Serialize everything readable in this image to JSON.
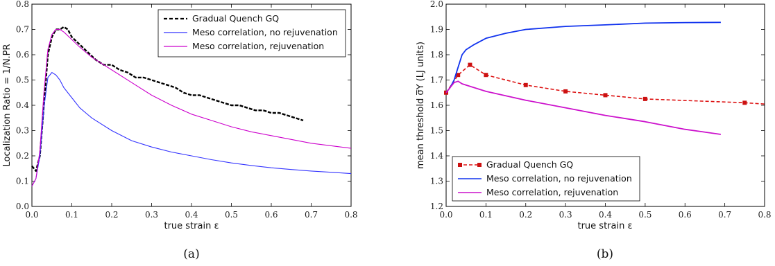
{
  "chart_data": [
    {
      "type": "line",
      "caption": "(a)",
      "xlabel": "true strain ε",
      "ylabel": "Localization Ratio = 1/N.PR",
      "xlim": [
        0,
        0.8
      ],
      "ylim": [
        0,
        0.8
      ],
      "xticks": [
        "0.0",
        "0.1",
        "0.2",
        "0.3",
        "0.4",
        "0.5",
        "0.6",
        "0.7",
        "0.8"
      ],
      "yticks": [
        "0.0",
        "0.1",
        "0.2",
        "0.3",
        "0.4",
        "0.5",
        "0.6",
        "0.7",
        "0.8"
      ],
      "legend_position": "top-right",
      "series": [
        {
          "name": "Gradual Quench GQ",
          "color": "#000000",
          "style": "dashed",
          "x": [
            0.0,
            0.01,
            0.02,
            0.03,
            0.04,
            0.05,
            0.06,
            0.07,
            0.08,
            0.09,
            0.1,
            0.12,
            0.14,
            0.16,
            0.18,
            0.2,
            0.22,
            0.24,
            0.26,
            0.28,
            0.3,
            0.32,
            0.34,
            0.36,
            0.38,
            0.4,
            0.42,
            0.44,
            0.46,
            0.48,
            0.5,
            0.52,
            0.54,
            0.56,
            0.58,
            0.6,
            0.62,
            0.64,
            0.66,
            0.68
          ],
          "y": [
            0.16,
            0.14,
            0.2,
            0.4,
            0.6,
            0.67,
            0.7,
            0.7,
            0.71,
            0.7,
            0.67,
            0.64,
            0.61,
            0.58,
            0.56,
            0.56,
            0.54,
            0.53,
            0.51,
            0.51,
            0.5,
            0.49,
            0.48,
            0.47,
            0.45,
            0.44,
            0.44,
            0.43,
            0.42,
            0.41,
            0.4,
            0.4,
            0.39,
            0.38,
            0.38,
            0.37,
            0.37,
            0.36,
            0.35,
            0.34
          ]
        },
        {
          "name": "Meso correlation, no rejuvenation",
          "color": "#3333ff",
          "style": "solid",
          "x": [
            0.0,
            0.01,
            0.02,
            0.03,
            0.04,
            0.05,
            0.06,
            0.07,
            0.08,
            0.1,
            0.12,
            0.15,
            0.2,
            0.25,
            0.3,
            0.35,
            0.4,
            0.45,
            0.5,
            0.55,
            0.6,
            0.65,
            0.7,
            0.75,
            0.8
          ],
          "y": [
            0.08,
            0.11,
            0.2,
            0.39,
            0.51,
            0.53,
            0.52,
            0.5,
            0.47,
            0.43,
            0.39,
            0.35,
            0.3,
            0.26,
            0.235,
            0.215,
            0.2,
            0.185,
            0.172,
            0.162,
            0.153,
            0.146,
            0.14,
            0.135,
            0.13
          ]
        },
        {
          "name": "Meso correlation, rejuvenation",
          "color": "#cc00cc",
          "style": "solid",
          "x": [
            0.0,
            0.01,
            0.02,
            0.03,
            0.04,
            0.05,
            0.06,
            0.07,
            0.08,
            0.1,
            0.12,
            0.15,
            0.2,
            0.25,
            0.3,
            0.35,
            0.4,
            0.45,
            0.5,
            0.55,
            0.6,
            0.65,
            0.7,
            0.75,
            0.8
          ],
          "y": [
            0.08,
            0.11,
            0.22,
            0.45,
            0.62,
            0.68,
            0.7,
            0.7,
            0.69,
            0.66,
            0.63,
            0.59,
            0.54,
            0.49,
            0.44,
            0.4,
            0.365,
            0.34,
            0.315,
            0.295,
            0.28,
            0.265,
            0.25,
            0.24,
            0.23
          ]
        }
      ]
    },
    {
      "type": "line",
      "caption": "(b)",
      "xlabel": "true strain ε",
      "ylabel": "mean threshold σ̅Y (LJ units)",
      "xlim": [
        0,
        0.8
      ],
      "ylim": [
        1.2,
        2.0
      ],
      "xticks": [
        "0.0",
        "0.1",
        "0.2",
        "0.3",
        "0.4",
        "0.5",
        "0.6",
        "0.7",
        "0.8"
      ],
      "yticks": [
        "1.2",
        "1.3",
        "1.4",
        "1.5",
        "1.6",
        "1.7",
        "1.8",
        "1.9",
        "2.0"
      ],
      "legend_position": "bottom-left",
      "series": [
        {
          "name": "Gradual Quench GQ",
          "color": "#dd1111",
          "style": "dashed",
          "markers": true,
          "x": [
            0.0,
            0.03,
            0.06,
            0.1,
            0.2,
            0.3,
            0.4,
            0.5,
            0.75,
            0.8
          ],
          "y": [
            1.65,
            1.72,
            1.76,
            1.72,
            1.68,
            1.655,
            1.64,
            1.625,
            1.61,
            1.605
          ],
          "marker_count": 9
        },
        {
          "name": "Meso correlation, no rejuvenation",
          "color": "#1133ee",
          "style": "solid",
          "x": [
            0.0,
            0.01,
            0.02,
            0.03,
            0.04,
            0.05,
            0.07,
            0.1,
            0.15,
            0.2,
            0.3,
            0.4,
            0.5,
            0.6,
            0.69
          ],
          "y": [
            1.65,
            1.67,
            1.7,
            1.75,
            1.8,
            1.82,
            1.84,
            1.865,
            1.885,
            1.9,
            1.912,
            1.918,
            1.925,
            1.927,
            1.928
          ]
        },
        {
          "name": "Meso correlation, rejuvenation",
          "color": "#cc11cc",
          "style": "solid",
          "x": [
            0.0,
            0.01,
            0.02,
            0.03,
            0.04,
            0.06,
            0.1,
            0.2,
            0.3,
            0.4,
            0.5,
            0.6,
            0.69
          ],
          "y": [
            1.65,
            1.67,
            1.69,
            1.695,
            1.685,
            1.675,
            1.655,
            1.62,
            1.59,
            1.56,
            1.535,
            1.505,
            1.485
          ]
        }
      ]
    }
  ]
}
